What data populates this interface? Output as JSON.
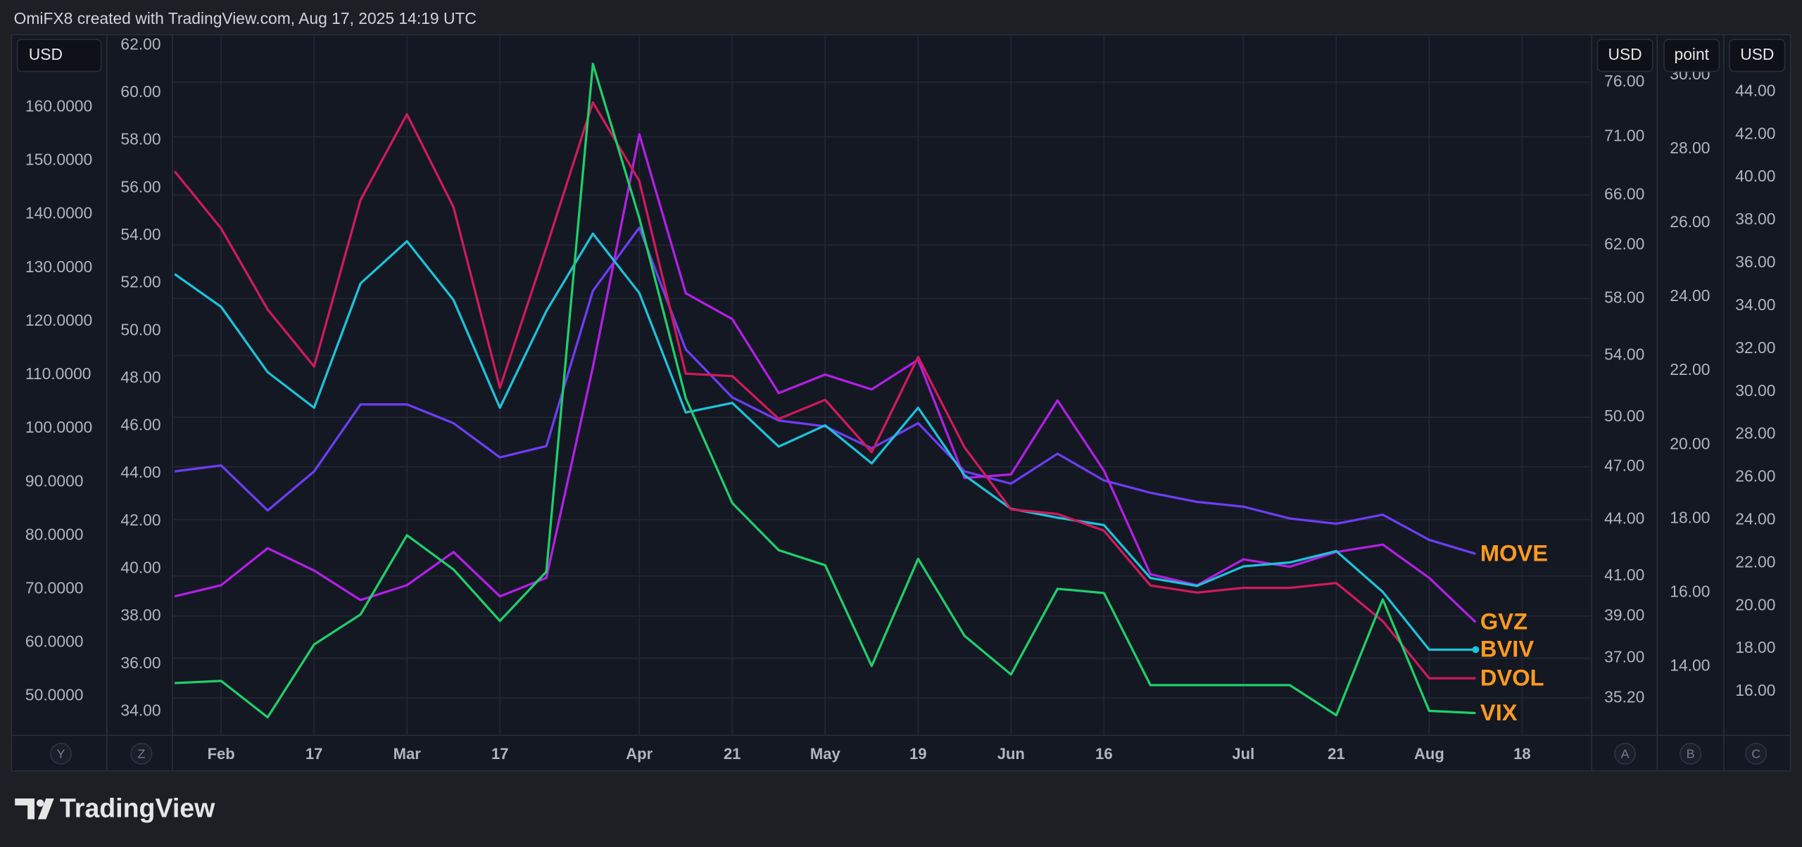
{
  "header": {
    "text": "OmiFX8 created with TradingView.com, Aug 17, 2025 14:19 UTC"
  },
  "footer": {
    "logo": "TradingView"
  },
  "axis_buttons": [
    "Y",
    "Z",
    "A",
    "B",
    "C"
  ],
  "chart_data": {
    "type": "line",
    "end_label_color": "#ff9a1f",
    "grid": true,
    "categories": [
      null,
      "Feb",
      null,
      "17",
      null,
      "Mar",
      null,
      "17",
      null,
      null,
      "Apr",
      null,
      "21",
      null,
      "May",
      null,
      "19",
      null,
      "Jun",
      null,
      "16",
      null,
      null,
      "Jul",
      null,
      "21",
      null,
      "Aug",
      null,
      "18"
    ],
    "axes": [
      {
        "label": "USD",
        "side": "left",
        "scale": "linear",
        "lim": [
          42.7,
          172.9
        ],
        "ticks": [
          {
            "value": 50,
            "label": "50.0000"
          },
          {
            "value": 60,
            "label": "60.0000"
          },
          {
            "value": 70,
            "label": "70.0000"
          },
          {
            "value": 80,
            "label": "80.0000"
          },
          {
            "value": 90,
            "label": "90.0000"
          },
          {
            "value": 100,
            "label": "100.0000"
          },
          {
            "value": 110,
            "label": "110.0000"
          },
          {
            "value": 120,
            "label": "120.0000"
          },
          {
            "value": 130,
            "label": "130.0000"
          },
          {
            "value": 140,
            "label": "140.0000"
          },
          {
            "value": 150,
            "label": "150.0000"
          },
          {
            "value": 160,
            "label": "160.0000"
          }
        ]
      },
      {
        "side": "left",
        "scale": "linear",
        "lim": [
          33,
          62.3
        ],
        "ticks": [
          {
            "value": 34,
            "label": "34.00"
          },
          {
            "value": 36,
            "label": "36.00"
          },
          {
            "value": 38,
            "label": "38.00"
          },
          {
            "value": 40,
            "label": "40.00"
          },
          {
            "value": 42,
            "label": "42.00"
          },
          {
            "value": 44,
            "label": "44.00"
          },
          {
            "value": 46,
            "label": "46.00"
          },
          {
            "value": 48,
            "label": "48.00"
          },
          {
            "value": 50,
            "label": "50.00"
          },
          {
            "value": 52,
            "label": "52.00"
          },
          {
            "value": 54,
            "label": "54.00"
          },
          {
            "value": 56,
            "label": "56.00"
          },
          {
            "value": 58,
            "label": "58.00"
          },
          {
            "value": 60,
            "label": "60.00"
          },
          {
            "value": 62,
            "label": "62.00"
          }
        ]
      },
      {
        "label": "USD",
        "side": "right",
        "scale": "log",
        "grid": true,
        "lim": [
          33.6,
          80.3
        ],
        "ticks": [
          {
            "value": 35.2,
            "label": "35.20"
          },
          {
            "value": 37,
            "label": "37.00"
          },
          {
            "value": 39,
            "label": "39.00"
          },
          {
            "value": 41,
            "label": "41.00"
          },
          {
            "value": 44,
            "label": "44.00"
          },
          {
            "value": 47,
            "label": "47.00"
          },
          {
            "value": 50,
            "label": "50.00"
          },
          {
            "value": 54,
            "label": "54.00"
          },
          {
            "value": 58,
            "label": "58.00"
          },
          {
            "value": 62,
            "label": "62.00"
          },
          {
            "value": 66,
            "label": "66.00"
          },
          {
            "value": 71,
            "label": "71.00"
          },
          {
            "value": 76,
            "label": "76.00"
          }
        ]
      },
      {
        "label": "point",
        "side": "right",
        "scale": "linear",
        "lim": [
          12.14,
          31
        ],
        "ticks": [
          {
            "value": 14,
            "label": "14.00"
          },
          {
            "value": 16,
            "label": "16.00"
          },
          {
            "value": 18,
            "label": "18.00"
          },
          {
            "value": 20,
            "label": "20.00"
          },
          {
            "value": 22,
            "label": "22.00"
          },
          {
            "value": 24,
            "label": "24.00"
          },
          {
            "value": 26,
            "label": "26.00"
          },
          {
            "value": 28,
            "label": "28.00"
          },
          {
            "value": 30,
            "label": "30.00"
          }
        ]
      },
      {
        "label": "USD",
        "side": "right",
        "scale": "linear",
        "lim": [
          13.96,
          46.5
        ],
        "ticks": [
          {
            "value": 16,
            "label": "16.00"
          },
          {
            "value": 18,
            "label": "18.00"
          },
          {
            "value": 20,
            "label": "20.00"
          },
          {
            "value": 22,
            "label": "22.00"
          },
          {
            "value": 24,
            "label": "24.00"
          },
          {
            "value": 26,
            "label": "26.00"
          },
          {
            "value": 28,
            "label": "28.00"
          },
          {
            "value": 30,
            "label": "30.00"
          },
          {
            "value": 32,
            "label": "32.00"
          },
          {
            "value": 34,
            "label": "34.00"
          },
          {
            "value": 36,
            "label": "36.00"
          },
          {
            "value": 38,
            "label": "38.00"
          },
          {
            "value": 40,
            "label": "40.00"
          },
          {
            "value": 42,
            "label": "42.00"
          },
          {
            "value": 44,
            "label": "44.00"
          }
        ]
      }
    ],
    "series": [
      {
        "name": "MOVE",
        "color": "#6e3df5",
        "axis": 0,
        "values": [
          92.0,
          93.1,
          84.7,
          92.0,
          104.5,
          104.5,
          101.0,
          94.6,
          96.7,
          125.7,
          137.5,
          114.8,
          105.8,
          101.5,
          100.4,
          96.3,
          101.0,
          92.0,
          89.7,
          95.3,
          90.3,
          88.0,
          86.3,
          85.4,
          83.2,
          82.2,
          83.9,
          79.2,
          76.6,
          null
        ]
      },
      {
        "name": "GVZ",
        "color": "#b31fe6",
        "axis": 3,
        "values": [
          15.9,
          16.2,
          17.2,
          16.6,
          15.8,
          16.2,
          17.1,
          15.9,
          16.4,
          22.1,
          28.4,
          24.1,
          23.4,
          21.4,
          21.9,
          21.5,
          22.3,
          19.1,
          19.2,
          21.2,
          19.3,
          16.5,
          16.2,
          16.9,
          16.7,
          17.1,
          17.3,
          16.4,
          15.2,
          null
        ]
      },
      {
        "name": "BVIV",
        "color": "#1cc3d9",
        "axis": 2,
        "end_dot": true,
        "values": [
          59.8,
          57.4,
          52.9,
          50.6,
          59.1,
          62.3,
          57.9,
          50.6,
          57.1,
          62.9,
          58.4,
          50.3,
          50.9,
          48.2,
          49.5,
          47.2,
          50.6,
          46.5,
          44.6,
          44.1,
          43.7,
          40.9,
          40.5,
          41.5,
          41.7,
          42.3,
          40.2,
          37.4,
          37.4,
          null
        ]
      },
      {
        "name": "DVOL",
        "color": "#d01a5c",
        "axis": 1,
        "values": [
          56.7,
          54.3,
          50.9,
          48.5,
          55.5,
          59.1,
          55.2,
          47.6,
          53.5,
          59.6,
          56.3,
          48.2,
          48.1,
          46.3,
          47.1,
          44.9,
          48.9,
          45.1,
          42.5,
          42.3,
          41.6,
          39.3,
          39.0,
          39.2,
          39.2,
          39.4,
          37.8,
          35.4,
          35.4,
          null
        ]
      },
      {
        "name": "VIX",
        "color": "#1fcf6a",
        "axis": 4,
        "values": [
          16.4,
          16.5,
          14.8,
          18.2,
          19.6,
          23.3,
          21.7,
          19.3,
          21.6,
          45.3,
          38.1,
          29.7,
          24.8,
          22.6,
          21.9,
          17.2,
          22.2,
          18.6,
          16.8,
          20.8,
          20.6,
          16.3,
          16.3,
          16.3,
          16.3,
          14.9,
          20.3,
          15.1,
          15.0,
          null
        ]
      }
    ]
  }
}
